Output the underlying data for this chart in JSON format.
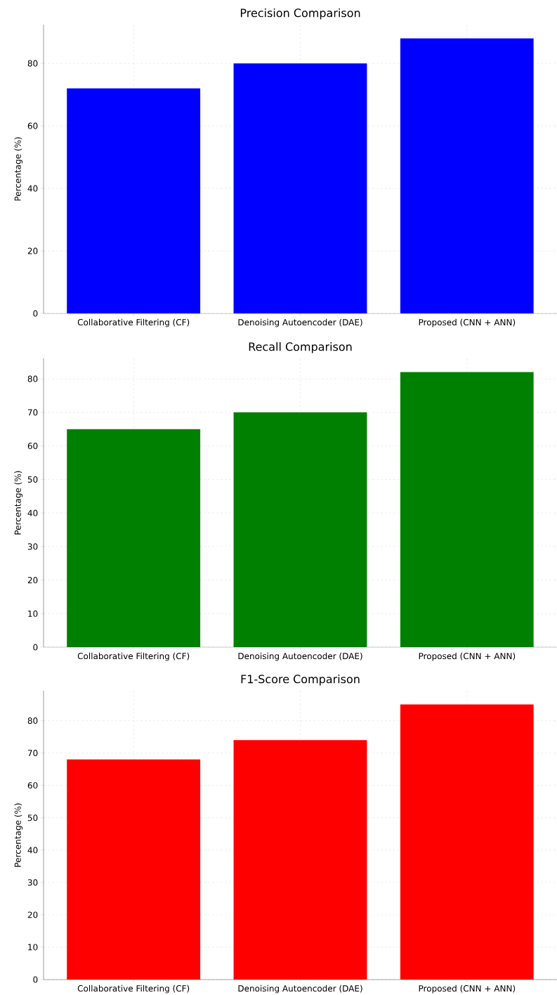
{
  "chart_data": [
    {
      "type": "bar",
      "title": "Precision Comparison",
      "ylabel": "Percentage (%)",
      "categories": [
        "Collaborative Filtering (CF)",
        "Denoising Autoencoder (DAE)",
        "Proposed (CNN + ANN)"
      ],
      "values": [
        72,
        80,
        88
      ],
      "color": "#0000ff",
      "ylim": [
        0,
        92.4
      ],
      "yticks": [
        0,
        20,
        40,
        60,
        80
      ],
      "grid": true
    },
    {
      "type": "bar",
      "title": "Recall Comparison",
      "ylabel": "Percentage (%)",
      "categories": [
        "Collaborative Filtering (CF)",
        "Denoising Autoencoder (DAE)",
        "Proposed (CNN + ANN)"
      ],
      "values": [
        65,
        70,
        82
      ],
      "color": "#008000",
      "ylim": [
        0,
        86.1
      ],
      "yticks": [
        0,
        10,
        20,
        30,
        40,
        50,
        60,
        70,
        80
      ],
      "grid": true
    },
    {
      "type": "bar",
      "title": "F1-Score Comparison",
      "ylabel": "Percentage (%)",
      "categories": [
        "Collaborative Filtering (CF)",
        "Denoising Autoencoder (DAE)",
        "Proposed (CNN + ANN)"
      ],
      "values": [
        68,
        74,
        85
      ],
      "color": "#ff0000",
      "ylim": [
        0,
        89.25
      ],
      "yticks": [
        0,
        10,
        20,
        30,
        40,
        50,
        60,
        70,
        80
      ],
      "grid": true
    }
  ]
}
